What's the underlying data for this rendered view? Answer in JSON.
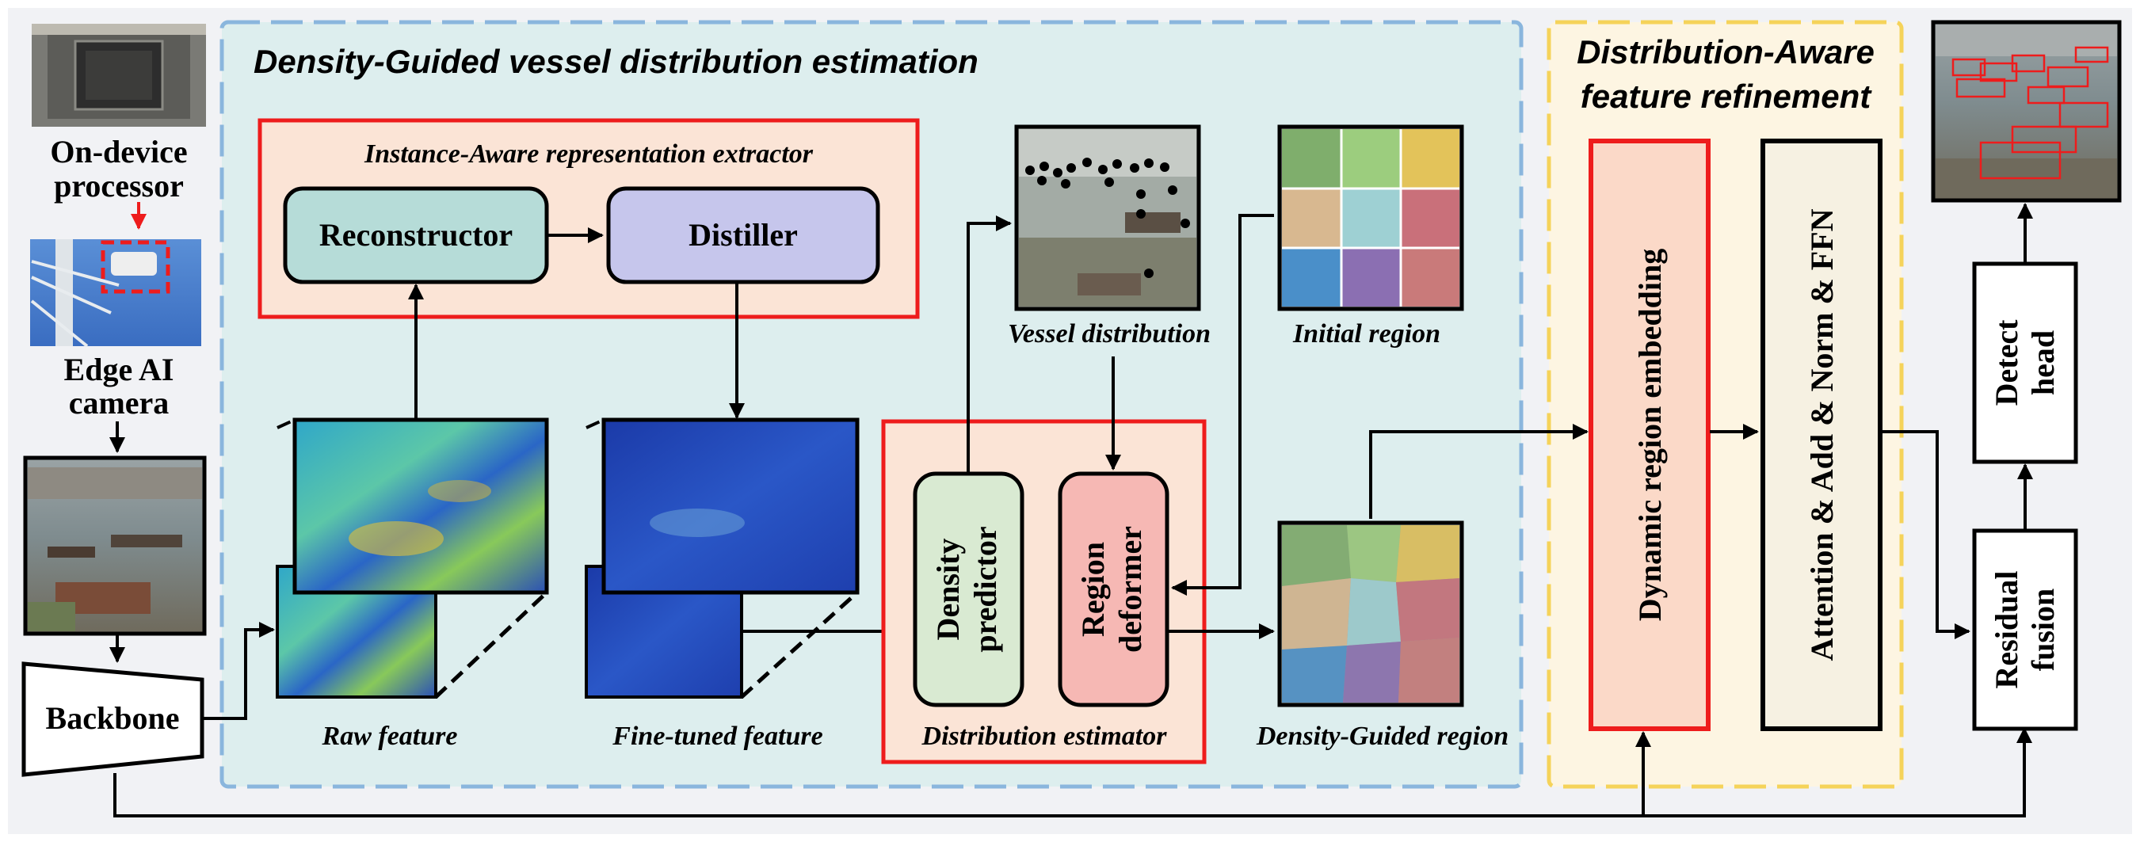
{
  "sections": {
    "density_guided": "Density-Guided vessel distribution estimation",
    "distribution_aware_line1": "Distribution-Aware",
    "distribution_aware_line2": "feature refinement"
  },
  "device": {
    "processor_line1": "On-device",
    "processor_line2": "processor",
    "camera_line1": "Edge AI",
    "camera_line2": "camera"
  },
  "modules": {
    "backbone": "Backbone",
    "instance_extractor": "Instance-Aware representation extractor",
    "reconstructor": "Reconstructor",
    "distiller": "Distiller",
    "density_predictor_line1": "Density",
    "density_predictor_line2": "predictor",
    "region_deformer_line1": "Region",
    "region_deformer_line2": "deformer",
    "distribution_estimator": "Distribution estimator",
    "dynamic_region_embedding": "Dynamic region embedding",
    "attention_block": "Attention & Add & Norm & FFN",
    "residual_fusion_line1": "Residual",
    "residual_fusion_line2": "fusion",
    "detect_head_line1": "Detect",
    "detect_head_line2": "head"
  },
  "captions": {
    "raw_feature": "Raw feature",
    "finetuned_feature": "Fine-tuned feature",
    "vessel_distribution": "Vessel distribution",
    "initial_region": "Initial region",
    "density_guided_region": "Density-Guided region"
  },
  "colors": {
    "density_panel_bg": "#ddeeee",
    "density_panel_border": "#8ab6dd",
    "refine_panel_bg": "#fdf5e2",
    "refine_panel_border": "#f5d35a",
    "red_border": "#ee1c1c",
    "reconstructor_fill": "#b6dcd8",
    "distiller_fill": "#c6c6ec",
    "density_predictor_fill": "#d9ead2",
    "region_deformer_fill": "#f6b8b4",
    "dynamic_embedding_fill": "#fbd9c8",
    "attention_fill": "#f6f1e2"
  }
}
